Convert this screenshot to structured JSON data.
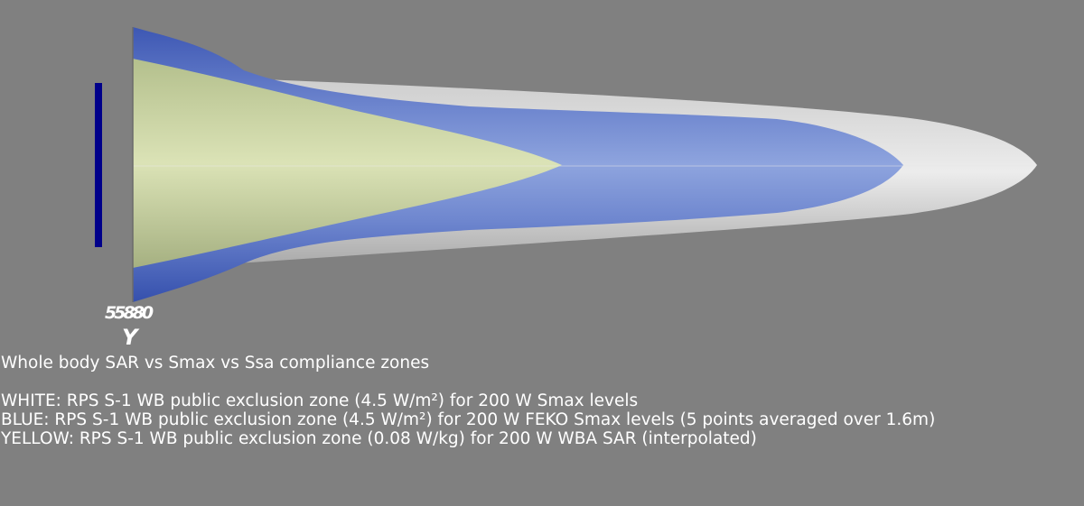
{
  "scene": {
    "background": "#808080",
    "zones": [
      {
        "name": "white-zone",
        "color": "#e6e6e6"
      },
      {
        "name": "blue-zone",
        "color": "#4a63b8"
      },
      {
        "name": "yellow-zone",
        "color": "#ccd79a"
      }
    ],
    "scale_bar_color": "#00008a"
  },
  "axis": {
    "tick_labels": "55880",
    "title": "Y"
  },
  "caption": {
    "title": "Whole body SAR vs Smax vs Ssa compliance zones",
    "lines": [
      "WHITE: RPS S-1 WB public exclusion zone (4.5 W/m²) for 200 W Smax levels",
      "BLUE: RPS S-1 WB public exclusion zone (4.5 W/m²) for 200 W FEKO Smax levels (5 points averaged over 1.6m)",
      "YELLOW: RPS S-1 WB public exclusion zone (0.08 W/kg) for 200 W WBA SAR (interpolated)"
    ]
  }
}
